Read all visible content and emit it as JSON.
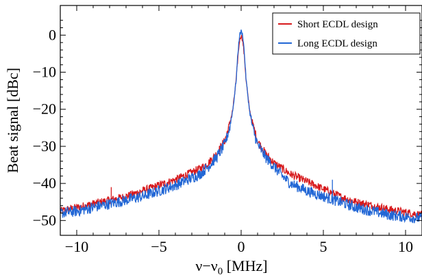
{
  "chart_data": {
    "type": "line",
    "title": "",
    "xlabel": "ν−ν",
    "xlabel_sub": "0",
    "xlabel_unit": " [MHz]",
    "ylabel": "Beat signal [dBc]",
    "xlim": [
      -11,
      11
    ],
    "ylim": [
      -54,
      8
    ],
    "x_ticks": [
      -10,
      -5,
      0,
      5,
      10
    ],
    "x_tick_labels": [
      "−10",
      "−5",
      "0",
      "5",
      "10"
    ],
    "y_ticks": [
      0,
      -10,
      -20,
      -30,
      -40,
      -50
    ],
    "y_tick_labels": [
      "0",
      "−10",
      "−20",
      "−30",
      "−40",
      "−50"
    ],
    "grid": false,
    "legend_position": "top-right",
    "series": [
      {
        "name": "Short ECDL design",
        "color": "#d7191c",
        "x": [
          -11,
          -10,
          -9,
          -8,
          -7,
          -6,
          -5,
          -4,
          -3,
          -2.5,
          -2,
          -1.5,
          -1,
          -0.7,
          -0.5,
          -0.3,
          -0.2,
          -0.1,
          0,
          0.1,
          0.2,
          0.3,
          0.5,
          0.7,
          1,
          1.5,
          2,
          2.5,
          3,
          4,
          5,
          6,
          7,
          8,
          9,
          10,
          11
        ],
        "y": [
          -47.5,
          -46.5,
          -45.5,
          -44.5,
          -43.5,
          -42,
          -40.5,
          -39,
          -37,
          -36,
          -34.5,
          -32,
          -28.5,
          -24,
          -20,
          -12,
          -6,
          -1.5,
          0,
          -1.5,
          -6,
          -12,
          -20,
          -24,
          -28.5,
          -32,
          -34.5,
          -36,
          -37.5,
          -39.5,
          -41.5,
          -43.5,
          -45,
          -46,
          -47,
          -47.8,
          -48.5
        ],
        "spikes": [
          {
            "x": -7.9,
            "y": -41
          }
        ]
      },
      {
        "name": "Long ECDL design",
        "color": "#2166d5",
        "x": [
          -11,
          -10,
          -9,
          -8,
          -7,
          -6,
          -5,
          -4,
          -3,
          -2.5,
          -2,
          -1.5,
          -1,
          -0.7,
          -0.5,
          -0.3,
          -0.2,
          -0.1,
          0,
          0.1,
          0.2,
          0.3,
          0.5,
          0.7,
          1,
          1.5,
          2,
          2.5,
          3,
          4,
          5,
          6,
          7,
          8,
          9,
          10,
          11
        ],
        "y": [
          -48,
          -47.5,
          -46.5,
          -45.5,
          -44.5,
          -43.5,
          -42,
          -40.5,
          -38.5,
          -37.5,
          -35.5,
          -33,
          -29.5,
          -25,
          -20,
          -12,
          -5,
          0,
          1,
          0,
          -5,
          -12,
          -20,
          -25,
          -29.5,
          -33,
          -35.5,
          -38,
          -40,
          -42,
          -43.5,
          -45,
          -46.5,
          -47.5,
          -48.5,
          -49,
          -49.5
        ],
        "spikes": [
          {
            "x": 5.55,
            "y": -39
          }
        ]
      }
    ]
  }
}
